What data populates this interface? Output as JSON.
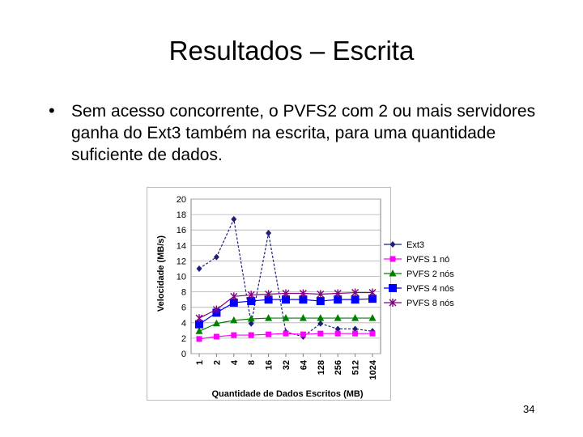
{
  "slide": {
    "title": "Resultados – Escrita",
    "bullet_symbol": "•",
    "bullet": "Sem acesso concorrente, o PVFS2 com 2 ou mais servidores ganha do Ext3 também na escrita, para uma quantidade suficiente de dados.",
    "page_number": "34"
  },
  "chart_data": {
    "type": "line",
    "xlabel": "Quantidade de Dados Escritos (MB)",
    "ylabel": "Velocidade (MB/s)",
    "categories": [
      "1",
      "2",
      "4",
      "8",
      "16",
      "32",
      "64",
      "128",
      "256",
      "512",
      "1024"
    ],
    "ylim": [
      0,
      20
    ],
    "yticks": [
      0,
      2,
      4,
      6,
      8,
      10,
      12,
      14,
      16,
      18,
      20
    ],
    "grid": true,
    "legend_position": "right",
    "series": [
      {
        "name": "Ext3",
        "color": "#1f1f7a",
        "marker": "diamond",
        "dashed": true,
        "values": [
          11.0,
          12.5,
          17.4,
          3.9,
          15.6,
          2.8,
          2.2,
          3.9,
          3.2,
          3.2,
          2.9
        ]
      },
      {
        "name": "PVFS 1 nó",
        "color": "#ff00ff",
        "marker": "square",
        "dashed": false,
        "values": [
          1.9,
          2.2,
          2.4,
          2.4,
          2.5,
          2.6,
          2.5,
          2.6,
          2.6,
          2.6,
          2.6
        ]
      },
      {
        "name": "PVFS 2 nós",
        "color": "#008000",
        "marker": "triangle",
        "dashed": false,
        "values": [
          2.9,
          3.9,
          4.3,
          4.5,
          4.6,
          4.6,
          4.6,
          4.6,
          4.6,
          4.6,
          4.6
        ]
      },
      {
        "name": "PVFS 4 nós",
        "color": "#0000ff",
        "marker": "square-large",
        "dashed": false,
        "values": [
          3.8,
          5.3,
          6.6,
          6.8,
          7.0,
          7.0,
          7.0,
          6.8,
          7.0,
          7.0,
          7.1
        ]
      },
      {
        "name": "PVFS 8 nós",
        "color": "#800080",
        "marker": "star",
        "dashed": false,
        "values": [
          4.6,
          5.7,
          7.4,
          7.6,
          7.7,
          7.8,
          7.8,
          7.7,
          7.8,
          7.9,
          7.9
        ]
      }
    ]
  }
}
